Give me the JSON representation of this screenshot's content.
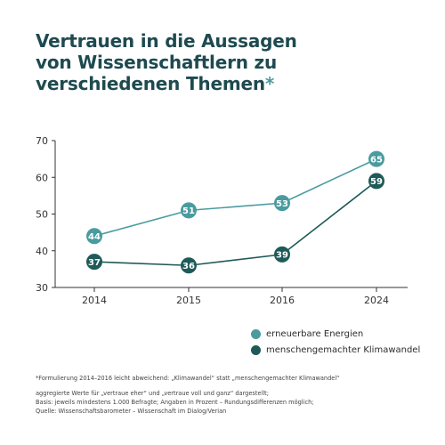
{
  "title": {
    "line1": "Vertrauen in die Aussagen",
    "line2": "von Wissenschaftlern zu",
    "line3": "verschiedenen Themen",
    "asterisk": "*"
  },
  "chart_data": {
    "type": "line",
    "categories": [
      "2014",
      "2015",
      "2016",
      "2024"
    ],
    "yticks": [
      "30",
      "40",
      "50",
      "60",
      "70"
    ],
    "ylim": [
      30,
      70
    ],
    "grid": false,
    "legend_position": "bottom-right",
    "series": [
      {
        "name": "erneuerbare Energien",
        "values": [
          44,
          51,
          53,
          65
        ],
        "color": "#4a9b9f"
      },
      {
        "name": "menschengemachter Klimawandel",
        "values": [
          37,
          36,
          39,
          59
        ],
        "color": "#1e5a58"
      }
    ]
  },
  "footnote": "*Formulierung 2014–2016 leicht abweichend: „Klimawandel“ statt „menschengemachter Klimawandel“",
  "notes": [
    "aggregierte Werte für „vertraue eher“ und „vertraue voll und ganz“ dargestellt;",
    "Basis: jeweils mindestens 1.000 Befragte; Angaben in Prozent – Rundungsdifferenzen möglich;",
    "Quelle: Wissenschaftsbarometer – Wissenschaft im Dialog/Verian"
  ]
}
